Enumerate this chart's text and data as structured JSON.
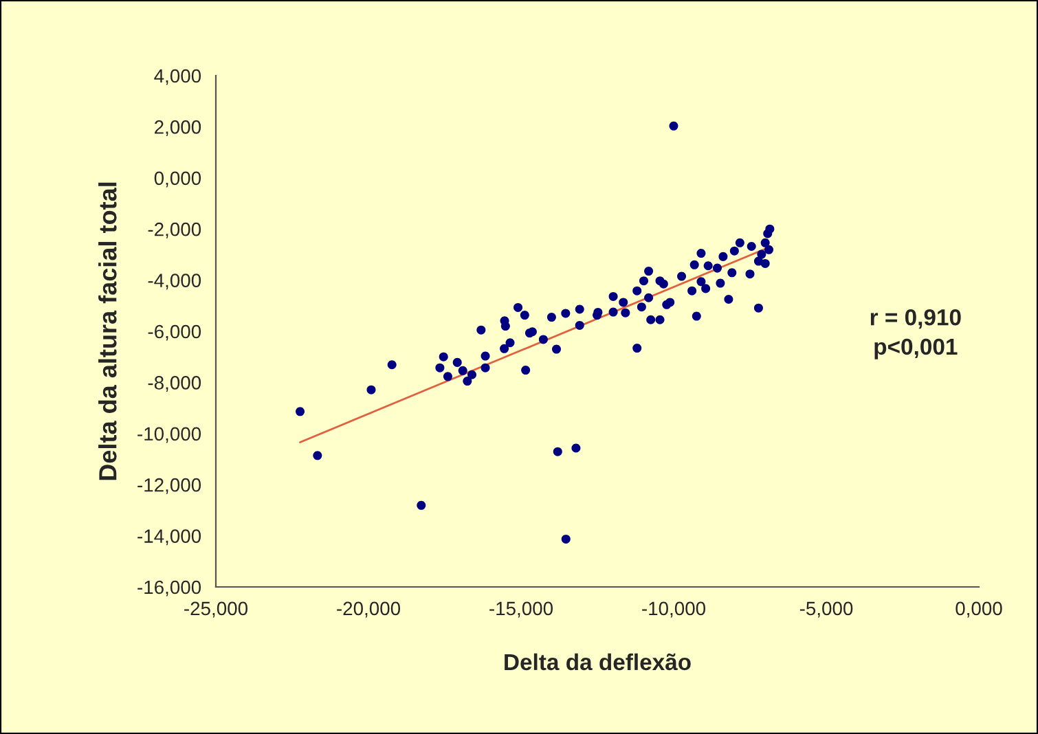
{
  "chart_data": {
    "type": "scatter",
    "xlabel": "Delta da deflexão",
    "ylabel": "Delta da altura facial total",
    "annotations": [
      "r = 0,910",
      "p<0,001"
    ],
    "xlim": [
      -25,
      0
    ],
    "ylim": [
      -16,
      4
    ],
    "xticks": [
      {
        "value": -25,
        "label": "-25,000"
      },
      {
        "value": -20,
        "label": "-20,000"
      },
      {
        "value": -15,
        "label": "-15,000"
      },
      {
        "value": -10,
        "label": "-10,000"
      },
      {
        "value": -5,
        "label": "-5,000"
      },
      {
        "value": 0,
        "label": "0,000"
      }
    ],
    "yticks": [
      {
        "value": -16,
        "label": "-16,000"
      },
      {
        "value": -14,
        "label": "-14,000"
      },
      {
        "value": -12,
        "label": "-12,000"
      },
      {
        "value": -10,
        "label": "-10,000"
      },
      {
        "value": -8,
        "label": "-8,000"
      },
      {
        "value": -6,
        "label": "-6,000"
      },
      {
        "value": -4,
        "label": "-4,000"
      },
      {
        "value": -2,
        "label": "-2,000"
      },
      {
        "value": 0,
        "label": "0,000"
      },
      {
        "value": 2,
        "label": "2,000"
      },
      {
        "value": 4,
        "label": "4,000"
      }
    ],
    "grid": false,
    "legend": false,
    "marker": "circle",
    "series": [
      {
        "color": "#000080",
        "x": [
          -22.24,
          -21.67,
          -19.91,
          -19.23,
          -18.27,
          -17.66,
          -17.54,
          -17.4,
          -17.09,
          -16.91,
          -16.76,
          -16.61,
          -16.31,
          -16.17,
          -16.17,
          -15.54,
          -15.51,
          -15.55,
          -15.36,
          -15.1,
          -14.88,
          -14.85,
          -14.72,
          -14.63,
          -14.27,
          -14.0,
          -13.84,
          -13.8,
          -13.54,
          -13.53,
          -13.2,
          -13.08,
          -13.08,
          -12.51,
          -11.98,
          -11.98,
          -10.0,
          -12.48,
          -11.65,
          -11.58,
          -11.2,
          -11.2,
          -11.05,
          -10.98,
          -10.82,
          -10.82,
          -10.75,
          -10.45,
          -10.45,
          -10.33,
          -10.23,
          -10.12,
          -9.74,
          -9.4,
          -9.32,
          -9.25,
          -9.1,
          -9.1,
          -8.95,
          -8.87,
          -8.57,
          -8.47,
          -8.38,
          -8.2,
          -8.09,
          -8.01,
          -7.83,
          -7.5,
          -7.45,
          -7.22,
          -7.22,
          -7.12,
          -7.0,
          -6.92,
          -6.88,
          -7.0,
          -6.85
        ],
        "values": [
          -9.14,
          -10.86,
          -8.29,
          -7.31,
          -12.81,
          -7.43,
          -7.0,
          -7.77,
          -7.22,
          -7.54,
          -7.95,
          -7.7,
          -5.95,
          -6.97,
          -7.43,
          -5.59,
          -5.8,
          -6.68,
          -6.45,
          -5.07,
          -5.37,
          -7.52,
          -6.07,
          -6.02,
          -6.32,
          -5.45,
          -6.7,
          -10.71,
          -5.3,
          -14.13,
          -10.57,
          -5.14,
          -5.77,
          -5.37,
          -4.64,
          -5.25,
          2.03,
          -5.26,
          -4.87,
          -5.28,
          -6.66,
          -4.42,
          -5.05,
          -4.03,
          -3.65,
          -4.69,
          -5.55,
          -5.55,
          -4.03,
          -4.15,
          -4.96,
          -4.87,
          -3.85,
          -4.42,
          -3.4,
          -5.41,
          -2.95,
          -4.06,
          -4.33,
          -3.44,
          -3.53,
          -4.12,
          -3.08,
          -4.75,
          -3.71,
          -2.86,
          -2.54,
          -3.76,
          -2.68,
          -5.09,
          -3.26,
          -2.99,
          -2.54,
          -2.18,
          -2.81,
          -3.35,
          -2.0
        ]
      },
      {
        "type": "line",
        "color": "#e06040",
        "x": [
          -22.24,
          -6.88
        ],
        "values": [
          -10.34,
          -2.72
        ],
        "marker": "none",
        "line_style": "solid"
      }
    ]
  }
}
